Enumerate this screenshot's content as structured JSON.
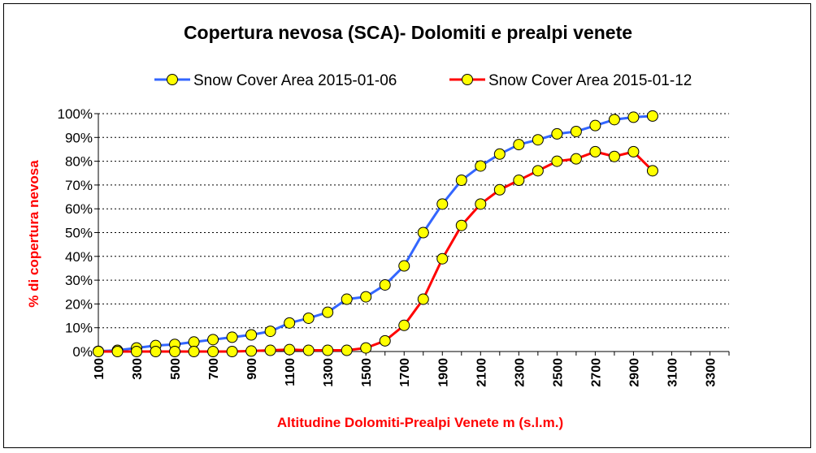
{
  "chart_data": {
    "type": "line",
    "title": "Copertura nevosa (SCA)- Dolomiti e prealpi venete",
    "xlabel": "Altitudine Dolomiti-Prealpi Venete m (s.l.m.)",
    "ylabel": "% di copertura nevosa",
    "x_ticks": [
      "100",
      "300",
      "500",
      "700",
      "900",
      "1100",
      "1300",
      "1500",
      "1700",
      "1900",
      "2100",
      "2300",
      "2500",
      "2700",
      "2900",
      "3100",
      "3300"
    ],
    "y_ticks": [
      "0%",
      "10%",
      "20%",
      "30%",
      "40%",
      "50%",
      "60%",
      "70%",
      "80%",
      "90%",
      "100%"
    ],
    "xlim": [
      100,
      3400
    ],
    "ylim": [
      0,
      100
    ],
    "grid": "horizontal dotted",
    "legend_position": "top",
    "x": [
      100,
      200,
      300,
      400,
      500,
      600,
      700,
      800,
      900,
      1000,
      1100,
      1200,
      1300,
      1400,
      1500,
      1600,
      1700,
      1800,
      1900,
      2000,
      2100,
      2200,
      2300,
      2400,
      2500,
      2600,
      2700,
      2800,
      2900,
      3000
    ],
    "series": [
      {
        "name": "Snow Cover Area 2015-01-06",
        "color": "#3366ff",
        "marker_color": "#ffff00",
        "values": [
          0.1,
          0.5,
          1.5,
          2.5,
          3,
          4,
          5,
          6,
          7,
          8.5,
          12,
          14,
          16.5,
          22,
          23,
          28,
          36,
          50,
          62,
          72,
          78,
          83,
          87,
          89,
          91.5,
          92.5,
          95,
          97.5,
          98.5,
          99
        ]
      },
      {
        "name": "Snow Cover Area 2015-01-12",
        "color": "#ff0000",
        "marker_color": "#ffff00",
        "values": [
          0,
          0,
          0,
          0,
          0,
          0,
          0,
          0,
          0.2,
          0.5,
          0.8,
          0.5,
          0.5,
          0.5,
          1.5,
          4.5,
          11,
          22,
          39,
          53,
          62,
          68,
          72,
          76,
          80,
          81,
          84,
          82,
          84,
          76
        ]
      }
    ]
  }
}
